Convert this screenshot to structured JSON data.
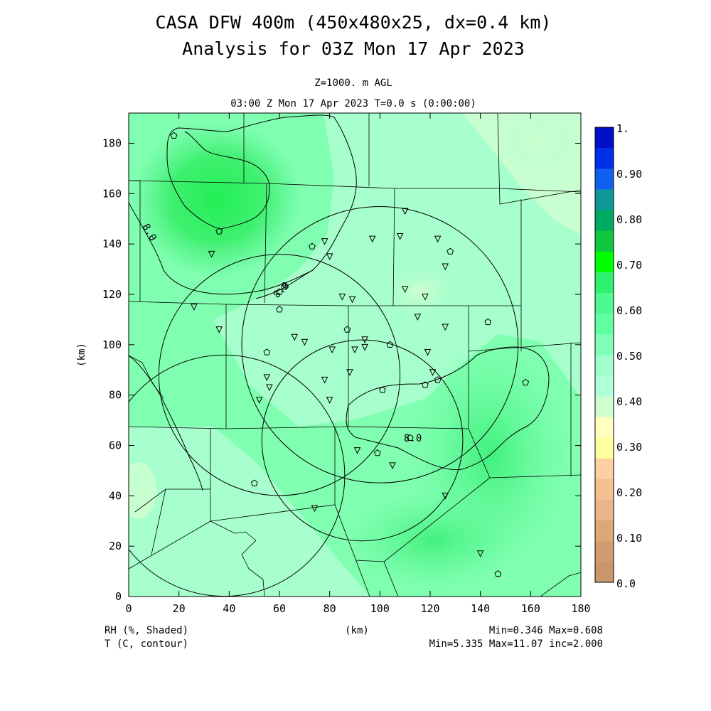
{
  "header": {
    "title": "CASA DFW 400m (450x480x25, dx=0.4 km)",
    "subtitle": "Analysis for 03Z Mon 17 Apr 2023",
    "level": "Z=1000. m AGL",
    "time": "03:00 Z Mon 17 Apr 2023    T=0.0 s (0:00:00)"
  },
  "axes": {
    "xlabel": "(km)",
    "ylabel": "(km)",
    "xticks": [
      "0",
      "20",
      "40",
      "60",
      "80",
      "100",
      "120",
      "140",
      "160",
      "180"
    ],
    "yticks": [
      "0",
      "20",
      "40",
      "60",
      "80",
      "100",
      "120",
      "140",
      "160",
      "180"
    ],
    "xrange": [
      0,
      180
    ],
    "yrange": [
      0,
      192
    ]
  },
  "colorbar": {
    "labels": [
      "0.0",
      "0.10",
      "0.20",
      "0.30",
      "0.40",
      "0.50",
      "0.60",
      "0.70",
      "0.80",
      "0.90",
      "1."
    ],
    "colors": [
      "#c8966a",
      "#d09c70",
      "#dca878",
      "#eab58a",
      "#f3c190",
      "#fcd0a0",
      "#ffffa0",
      "#ffffc0",
      "#d0ffd0",
      "#b0ffd8",
      "#a0ffcc",
      "#80ffb8",
      "#60ffa0",
      "#50f890",
      "#30f070",
      "#00ff00",
      "#10c840",
      "#00aa60",
      "#109898",
      "#1060f0",
      "#0030e8",
      "#0010c8"
    ]
  },
  "contour_labels": [
    "8.0",
    "8.0",
    "8.0"
  ],
  "footer": {
    "left1": "RH (%, Shaded)",
    "left2": "T (C, contour)",
    "center": "(km)",
    "right1": "Min=0.346 Max=0.608",
    "right2": "Min=5.335 Max=11.07 inc=2.000"
  },
  "radars": [
    {
      "x": 100,
      "y": 100,
      "r": 55
    },
    {
      "x": 60,
      "y": 88,
      "r": 48
    },
    {
      "x": 38,
      "y": 48,
      "r": 48
    },
    {
      "x": 93,
      "y": 62,
      "r": 40
    }
  ],
  "stations_triangle": [
    [
      110,
      153
    ],
    [
      108,
      143
    ],
    [
      97,
      142
    ],
    [
      123,
      142
    ],
    [
      78,
      141
    ],
    [
      80,
      135
    ],
    [
      126,
      131
    ],
    [
      33,
      136
    ],
    [
      110,
      122
    ],
    [
      118,
      119
    ],
    [
      85,
      119
    ],
    [
      89,
      118
    ],
    [
      26,
      115
    ],
    [
      115,
      111
    ],
    [
      36,
      106
    ],
    [
      126,
      107
    ],
    [
      94,
      102
    ],
    [
      66,
      103
    ],
    [
      70,
      101
    ],
    [
      94,
      99
    ],
    [
      90,
      98
    ],
    [
      81,
      98
    ],
    [
      119,
      97
    ],
    [
      88,
      89
    ],
    [
      78,
      86
    ],
    [
      121,
      89
    ],
    [
      55,
      87
    ],
    [
      56,
      83
    ],
    [
      52,
      78
    ],
    [
      80,
      78
    ],
    [
      91,
      58
    ],
    [
      105,
      52
    ],
    [
      126,
      40
    ],
    [
      74,
      35
    ],
    [
      140,
      17
    ]
  ],
  "stations_pentagon": [
    [
      18,
      183
    ],
    [
      36,
      145
    ],
    [
      73,
      139
    ],
    [
      128,
      137
    ],
    [
      60,
      121
    ],
    [
      62,
      123
    ],
    [
      60,
      114
    ],
    [
      87,
      106
    ],
    [
      143,
      109
    ],
    [
      55,
      97
    ],
    [
      104,
      100
    ],
    [
      123,
      86
    ],
    [
      118,
      84
    ],
    [
      101,
      82
    ],
    [
      158,
      85
    ],
    [
      99,
      57
    ],
    [
      112,
      63
    ],
    [
      50,
      45
    ],
    [
      147,
      9
    ]
  ]
}
